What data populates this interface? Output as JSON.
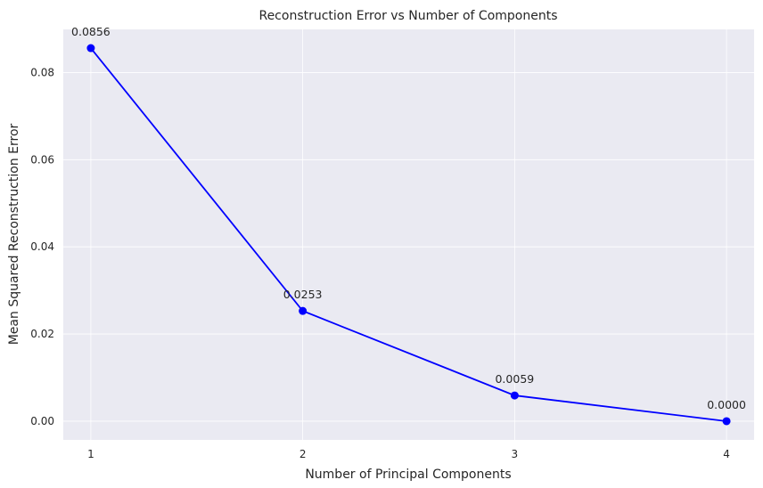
{
  "chart_data": {
    "type": "line",
    "title": "Reconstruction Error vs Number of Components",
    "xlabel": "Number of Principal Components",
    "ylabel": "Mean Squared Reconstruction Error",
    "x": [
      1,
      2,
      3,
      4
    ],
    "x_tick_labels": [
      "1",
      "2",
      "3",
      "4"
    ],
    "y_ticks": [
      0.0,
      0.02,
      0.04,
      0.06,
      0.08
    ],
    "y_tick_labels": [
      "0.00",
      "0.02",
      "0.04",
      "0.06",
      "0.08"
    ],
    "series": [
      {
        "values": [
          0.0856,
          0.0253,
          0.0059,
          0.0
        ],
        "color": "#0000ff",
        "marker": "circle"
      }
    ],
    "data_labels": [
      "0.0856",
      "0.0253",
      "0.0059",
      "0.0000"
    ],
    "xlim": [
      0.87,
      4.13
    ],
    "ylim": [
      -0.0043,
      0.0899
    ],
    "grid": true,
    "background_color": "#eaeaf2",
    "grid_color": "#ffffff"
  }
}
